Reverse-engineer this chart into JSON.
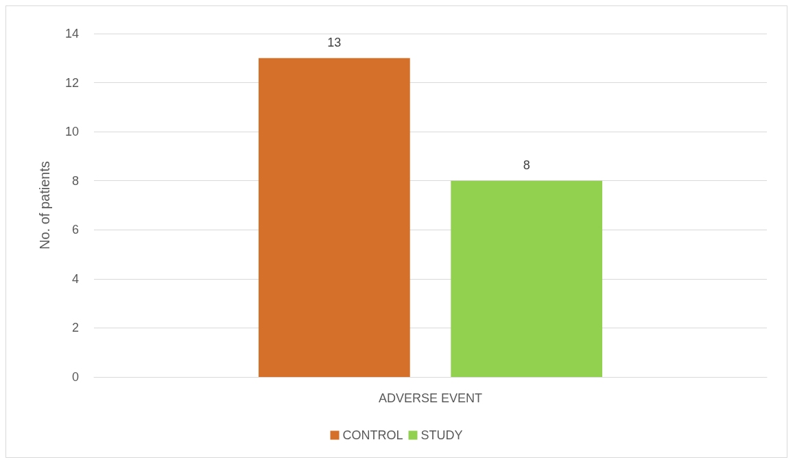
{
  "chart_data": {
    "type": "bar",
    "ylabel": "No. of patients",
    "categories": [
      "ADVERSE EVENT"
    ],
    "series": [
      {
        "name": "CONTROL",
        "color": "#d4702a",
        "values": [
          13
        ]
      },
      {
        "name": "STUDY",
        "color": "#92d050",
        "values": [
          8
        ]
      }
    ],
    "ylim": [
      0,
      14
    ],
    "yticks": [
      0,
      2,
      4,
      6,
      8,
      10,
      12,
      14
    ],
    "grid": "y",
    "legend": "bottom",
    "data_labels": true
  }
}
